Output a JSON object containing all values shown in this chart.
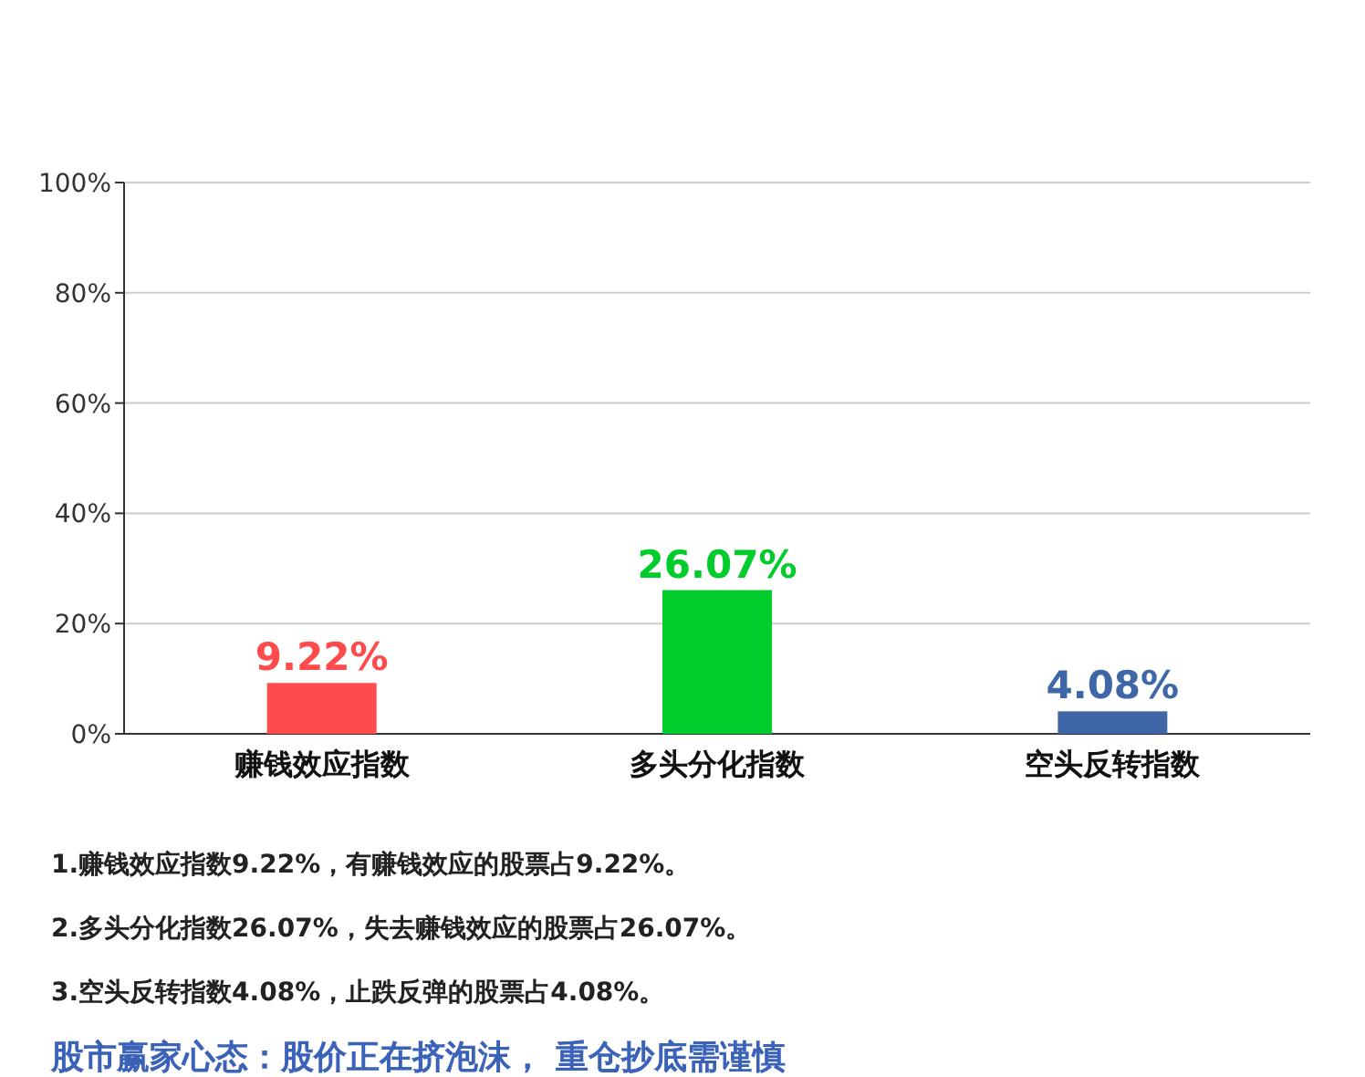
{
  "chart_data": {
    "type": "bar",
    "categories": [
      "赚钱效应指数",
      "多头分化指数",
      "空头反转指数"
    ],
    "values": [
      9.22,
      26.07,
      4.08
    ],
    "colors": [
      "#ff4b4b",
      "#00cc2c",
      "#3f67a8"
    ],
    "value_labels": [
      "9.22%",
      "26.07%",
      "4.08%"
    ],
    "ylim": [
      0,
      100
    ],
    "yticks": [
      {
        "value": 0,
        "label": "0%"
      },
      {
        "value": 20,
        "label": "20%"
      },
      {
        "value": 40,
        "label": "40%"
      },
      {
        "value": 60,
        "label": "60%"
      },
      {
        "value": 80,
        "label": "80%"
      },
      {
        "value": 100,
        "label": "100%"
      }
    ],
    "grid": "y",
    "annotations": [
      "1.赚钱效应指数9.22%，有赚钱效应的股票占9.22%。",
      "2.多头分化指数26.07%，失去赚钱效应的股票占26.07%。",
      "3.空头反转指数4.08%，止跌反弹的股票占4.08%。",
      "股市赢家心态：股价正在挤泡沫， 重仓抄底需谨慎"
    ]
  }
}
